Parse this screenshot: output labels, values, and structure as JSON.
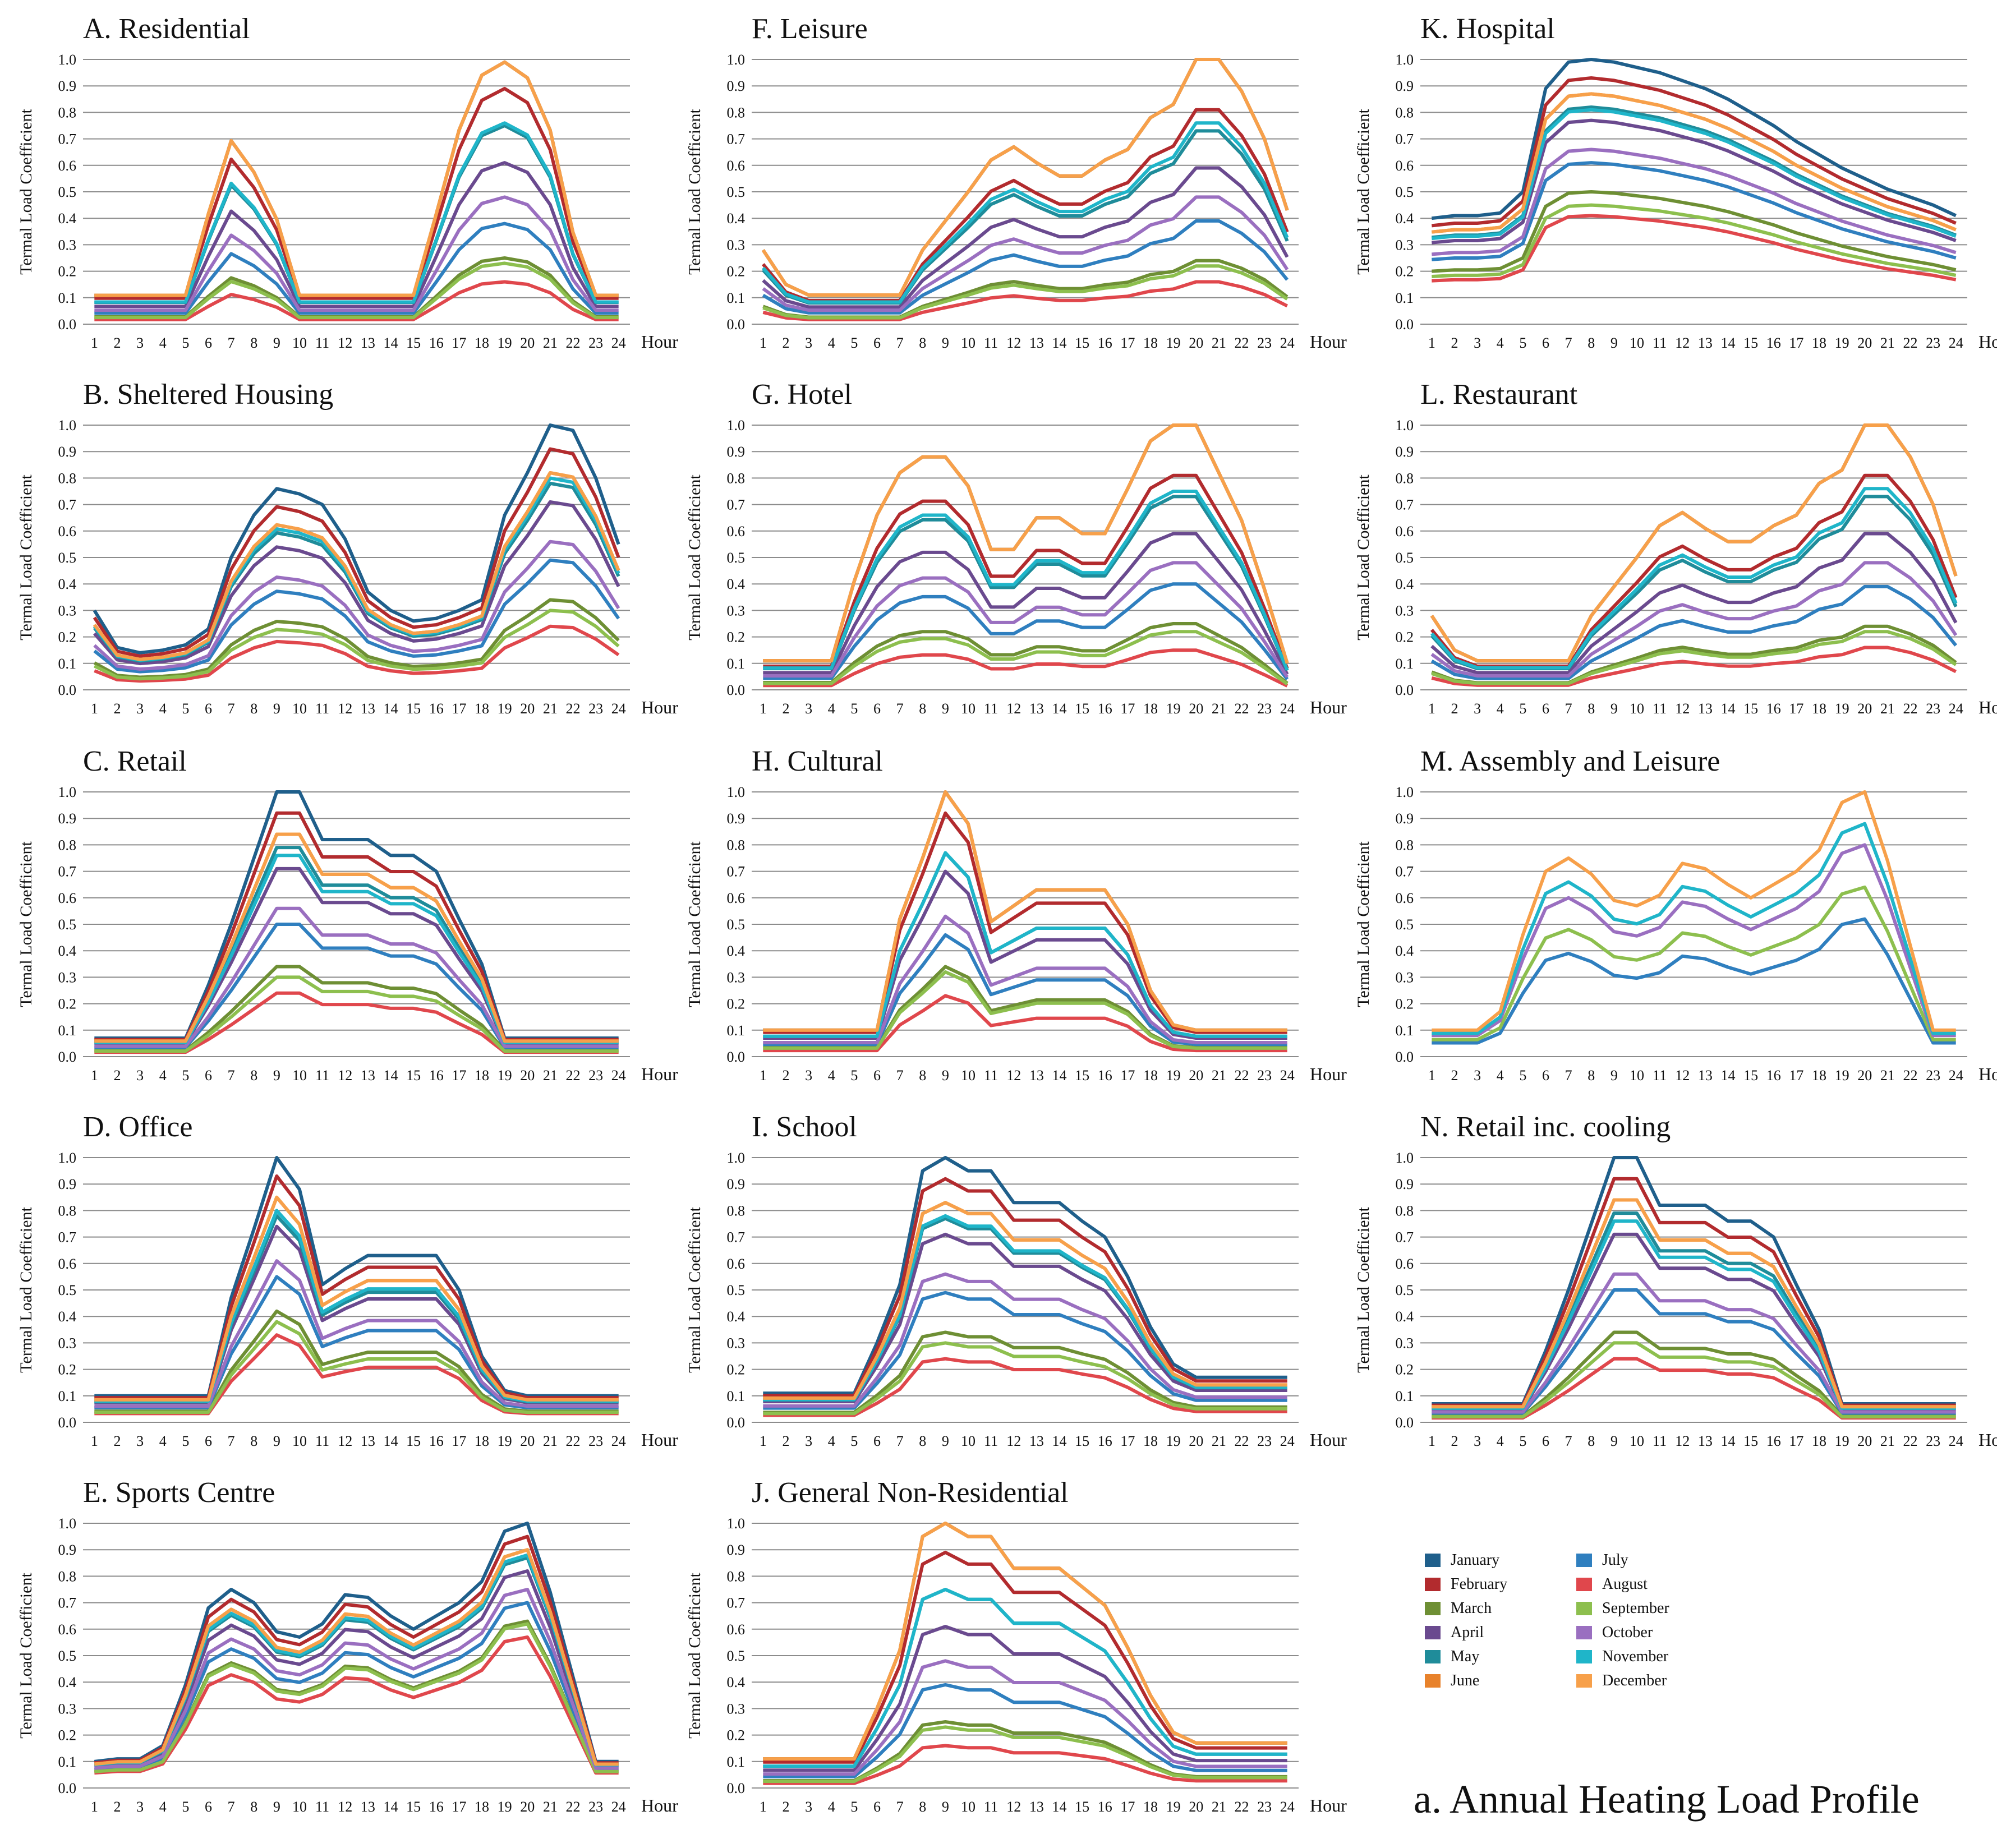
{
  "figure": {
    "caption": "a. Annual Heating Load Profile",
    "y_axis_label": "Termal Load Coefficient",
    "x_axis_unit": "Hour",
    "months": [
      "January",
      "February",
      "March",
      "April",
      "May",
      "June",
      "July",
      "August",
      "September",
      "October",
      "November",
      "December"
    ],
    "colors": {
      "January": "#1F5F8B",
      "February": "#B22B2E",
      "March": "#6E8F34",
      "April": "#6A4A8F",
      "May": "#1F8C9A",
      "June": "#E8822B",
      "July": "#2F7FBF",
      "August": "#E0474C",
      "September": "#8DBF4E",
      "October": "#9A6FC0",
      "November": "#1FB5C9",
      "December": "#F7A04A"
    }
  },
  "chart_data": [
    {
      "id": "A",
      "title": "A. Residential",
      "type": "line",
      "x": [
        1,
        2,
        3,
        4,
        5,
        6,
        7,
        8,
        9,
        10,
        11,
        12,
        13,
        14,
        15,
        16,
        17,
        18,
        19,
        20,
        21,
        22,
        23,
        24
      ],
      "ylim": [
        0,
        1
      ],
      "yticks": [
        0,
        0.1,
        0.2,
        0.3,
        0.4,
        0.5,
        0.6,
        0.7,
        0.8,
        0.9,
        1.0
      ],
      "shape": "A",
      "months_shown": "all",
      "month_peaks": [
        0.99,
        0.89,
        0.25,
        0.61,
        0.75,
        0.99,
        0.38,
        0.16,
        0.23,
        0.48,
        0.76,
        0.99
      ]
    },
    {
      "id": "B",
      "title": "B. Sheltered Housing",
      "type": "line",
      "x": [
        1,
        2,
        3,
        4,
        5,
        6,
        7,
        8,
        9,
        10,
        11,
        12,
        13,
        14,
        15,
        16,
        17,
        18,
        19,
        20,
        21,
        22,
        23,
        24
      ],
      "ylim": [
        0,
        1
      ],
      "yticks": [
        0,
        0.1,
        0.2,
        0.3,
        0.4,
        0.5,
        0.6,
        0.7,
        0.8,
        0.9,
        1.0
      ],
      "shape": "B",
      "months_shown": "all",
      "month_peaks": [
        1.0,
        0.91,
        0.34,
        0.71,
        0.78,
        0.82,
        0.49,
        0.24,
        0.3,
        0.56,
        0.8,
        0.82
      ]
    },
    {
      "id": "C",
      "title": "C. Retail",
      "type": "line",
      "x": [
        1,
        2,
        3,
        4,
        5,
        6,
        7,
        8,
        9,
        10,
        11,
        12,
        13,
        14,
        15,
        16,
        17,
        18,
        19,
        20,
        21,
        22,
        23,
        24
      ],
      "ylim": [
        0,
        1
      ],
      "yticks": [
        0,
        0.1,
        0.2,
        0.3,
        0.4,
        0.5,
        0.6,
        0.7,
        0.8,
        0.9,
        1.0
      ],
      "shape": "C",
      "months_shown": "all",
      "month_peaks": [
        1.0,
        0.92,
        0.34,
        0.71,
        0.79,
        0.84,
        0.5,
        0.24,
        0.3,
        0.56,
        0.76,
        0.84
      ]
    },
    {
      "id": "D",
      "title": "D. Office",
      "type": "line",
      "x": [
        1,
        2,
        3,
        4,
        5,
        6,
        7,
        8,
        9,
        10,
        11,
        12,
        13,
        14,
        15,
        16,
        17,
        18,
        19,
        20,
        21,
        22,
        23,
        24
      ],
      "ylim": [
        0,
        1
      ],
      "yticks": [
        0,
        0.1,
        0.2,
        0.3,
        0.4,
        0.5,
        0.6,
        0.7,
        0.8,
        0.9,
        1.0
      ],
      "shape": "D",
      "months_shown": "all",
      "month_peaks": [
        1.0,
        0.93,
        0.42,
        0.74,
        0.78,
        0.85,
        0.55,
        0.33,
        0.38,
        0.61,
        0.8,
        0.85
      ]
    },
    {
      "id": "E",
      "title": "E. Sports Centre",
      "type": "line",
      "x": [
        1,
        2,
        3,
        4,
        5,
        6,
        7,
        8,
        9,
        10,
        11,
        12,
        13,
        14,
        15,
        16,
        17,
        18,
        19,
        20,
        21,
        22,
        23,
        24
      ],
      "ylim": [
        0,
        1
      ],
      "yticks": [
        0,
        0.1,
        0.2,
        0.3,
        0.4,
        0.5,
        0.6,
        0.7,
        0.8,
        0.9,
        1.0
      ],
      "shape": "E",
      "months_shown": "all",
      "month_peaks": [
        1.0,
        0.95,
        0.63,
        0.82,
        0.87,
        0.9,
        0.7,
        0.57,
        0.62,
        0.75,
        0.88,
        0.9
      ]
    },
    {
      "id": "F",
      "title": "F. Leisure",
      "type": "line",
      "x": [
        1,
        2,
        3,
        4,
        5,
        6,
        7,
        8,
        9,
        10,
        11,
        12,
        13,
        14,
        15,
        16,
        17,
        18,
        19,
        20,
        21,
        22,
        23,
        24
      ],
      "ylim": [
        0,
        1
      ],
      "yticks": [
        0,
        0.1,
        0.2,
        0.3,
        0.4,
        0.5,
        0.6,
        0.7,
        0.8,
        0.9,
        1.0
      ],
      "shape": "F",
      "months_shown": "all",
      "month_peaks": [
        1.0,
        0.81,
        0.24,
        0.59,
        0.73,
        1.0,
        0.39,
        0.16,
        0.22,
        0.48,
        0.76,
        1.0
      ]
    },
    {
      "id": "G",
      "title": "G. Hotel",
      "type": "line",
      "x": [
        1,
        2,
        3,
        4,
        5,
        6,
        7,
        8,
        9,
        10,
        11,
        12,
        13,
        14,
        15,
        16,
        17,
        18,
        19,
        20,
        21,
        22,
        23,
        24
      ],
      "ylim": [
        0,
        1
      ],
      "yticks": [
        0,
        0.1,
        0.2,
        0.3,
        0.4,
        0.5,
        0.6,
        0.7,
        0.8,
        0.9,
        1.0
      ],
      "shape": "G",
      "months_shown": "all",
      "month_peaks": [
        1.0,
        0.81,
        0.25,
        0.59,
        0.73,
        1.0,
        0.4,
        0.15,
        0.22,
        0.48,
        0.75,
        1.0
      ]
    },
    {
      "id": "H",
      "title": "H. Cultural",
      "type": "line",
      "x": [
        1,
        2,
        3,
        4,
        5,
        6,
        7,
        8,
        9,
        10,
        11,
        12,
        13,
        14,
        15,
        16,
        17,
        18,
        19,
        20,
        21,
        22,
        23,
        24
      ],
      "ylim": [
        0,
        1
      ],
      "yticks": [
        0,
        0.1,
        0.2,
        0.3,
        0.4,
        0.5,
        0.6,
        0.7,
        0.8,
        0.9,
        1.0
      ],
      "shape": "H",
      "months_shown": "all",
      "month_peaks": [
        1.0,
        0.92,
        0.34,
        0.7,
        0.77,
        1.0,
        0.46,
        0.23,
        0.32,
        0.53,
        0.77,
        1.0
      ]
    },
    {
      "id": "I",
      "title": "I. School",
      "type": "line",
      "x": [
        1,
        2,
        3,
        4,
        5,
        6,
        7,
        8,
        9,
        10,
        11,
        12,
        13,
        14,
        15,
        16,
        17,
        18,
        19,
        20,
        21,
        22,
        23,
        24
      ],
      "ylim": [
        0,
        1
      ],
      "yticks": [
        0,
        0.1,
        0.2,
        0.3,
        0.4,
        0.5,
        0.6,
        0.7,
        0.8,
        0.9,
        1.0
      ],
      "shape": "I",
      "months_shown": "all",
      "month_peaks": [
        1.0,
        0.92,
        0.34,
        0.71,
        0.77,
        0.83,
        0.49,
        0.24,
        0.3,
        0.56,
        0.78,
        0.83
      ]
    },
    {
      "id": "J",
      "title": "J. General Non-Residential",
      "type": "line",
      "x": [
        1,
        2,
        3,
        4,
        5,
        6,
        7,
        8,
        9,
        10,
        11,
        12,
        13,
        14,
        15,
        16,
        17,
        18,
        19,
        20,
        21,
        22,
        23,
        24
      ],
      "ylim": [
        0,
        1
      ],
      "yticks": [
        0,
        0.1,
        0.2,
        0.3,
        0.4,
        0.5,
        0.6,
        0.7,
        0.8,
        0.9,
        1.0
      ],
      "shape": "J",
      "months_shown": "all",
      "month_peaks": [
        1.0,
        0.89,
        0.25,
        0.61,
        0.75,
        1.0,
        0.39,
        0.16,
        0.23,
        0.48,
        0.75,
        1.0
      ]
    },
    {
      "id": "K",
      "title": "K. Hospital",
      "type": "line",
      "x": [
        1,
        2,
        3,
        4,
        5,
        6,
        7,
        8,
        9,
        10,
        11,
        12,
        13,
        14,
        15,
        16,
        17,
        18,
        19,
        20,
        21,
        22,
        23,
        24
      ],
      "ylim": [
        0,
        1
      ],
      "yticks": [
        0,
        0.1,
        0.2,
        0.3,
        0.4,
        0.5,
        0.6,
        0.7,
        0.8,
        0.9,
        1.0
      ],
      "shape": "K",
      "months_shown": "all",
      "month_peaks": [
        1.0,
        0.93,
        0.5,
        0.77,
        0.82,
        0.87,
        0.61,
        0.41,
        0.45,
        0.66,
        0.81,
        0.87
      ]
    },
    {
      "id": "L",
      "title": "L. Restaurant",
      "type": "line",
      "x": [
        1,
        2,
        3,
        4,
        5,
        6,
        7,
        8,
        9,
        10,
        11,
        12,
        13,
        14,
        15,
        16,
        17,
        18,
        19,
        20,
        21,
        22,
        23,
        24
      ],
      "ylim": [
        0,
        1
      ],
      "yticks": [
        0,
        0.1,
        0.2,
        0.3,
        0.4,
        0.5,
        0.6,
        0.7,
        0.8,
        0.9,
        1.0
      ],
      "shape": "F",
      "months_shown": "all",
      "month_peaks": [
        1.0,
        0.81,
        0.24,
        0.59,
        0.73,
        1.0,
        0.39,
        0.16,
        0.22,
        0.48,
        0.76,
        1.0
      ]
    },
    {
      "id": "M",
      "title": "M. Assembly and Leisure",
      "type": "line",
      "x": [
        1,
        2,
        3,
        4,
        5,
        6,
        7,
        8,
        9,
        10,
        11,
        12,
        13,
        14,
        15,
        16,
        17,
        18,
        19,
        20,
        21,
        22,
        23,
        24
      ],
      "ylim": [
        0,
        1
      ],
      "yticks": [
        0,
        0.1,
        0.2,
        0.3,
        0.4,
        0.5,
        0.6,
        0.7,
        0.8,
        0.9,
        1.0
      ],
      "shape": "M",
      "months_shown": [
        "July",
        "September",
        "October",
        "November",
        "December"
      ],
      "month_peaks": [
        1.0,
        0.95,
        0.64,
        0.8,
        0.88,
        1.0,
        0.52,
        0.45,
        0.64,
        0.8,
        0.88,
        1.0
      ]
    },
    {
      "id": "N",
      "title": "N. Retail inc. cooling",
      "type": "line",
      "x": [
        1,
        2,
        3,
        4,
        5,
        6,
        7,
        8,
        9,
        10,
        11,
        12,
        13,
        14,
        15,
        16,
        17,
        18,
        19,
        20,
        21,
        22,
        23,
        24
      ],
      "ylim": [
        0,
        1
      ],
      "yticks": [
        0,
        0.1,
        0.2,
        0.3,
        0.4,
        0.5,
        0.6,
        0.7,
        0.8,
        0.9,
        1.0
      ],
      "shape": "C",
      "months_shown": "all",
      "month_peaks": [
        1.0,
        0.92,
        0.34,
        0.71,
        0.79,
        0.84,
        0.5,
        0.24,
        0.3,
        0.56,
        0.76,
        0.84
      ]
    }
  ]
}
